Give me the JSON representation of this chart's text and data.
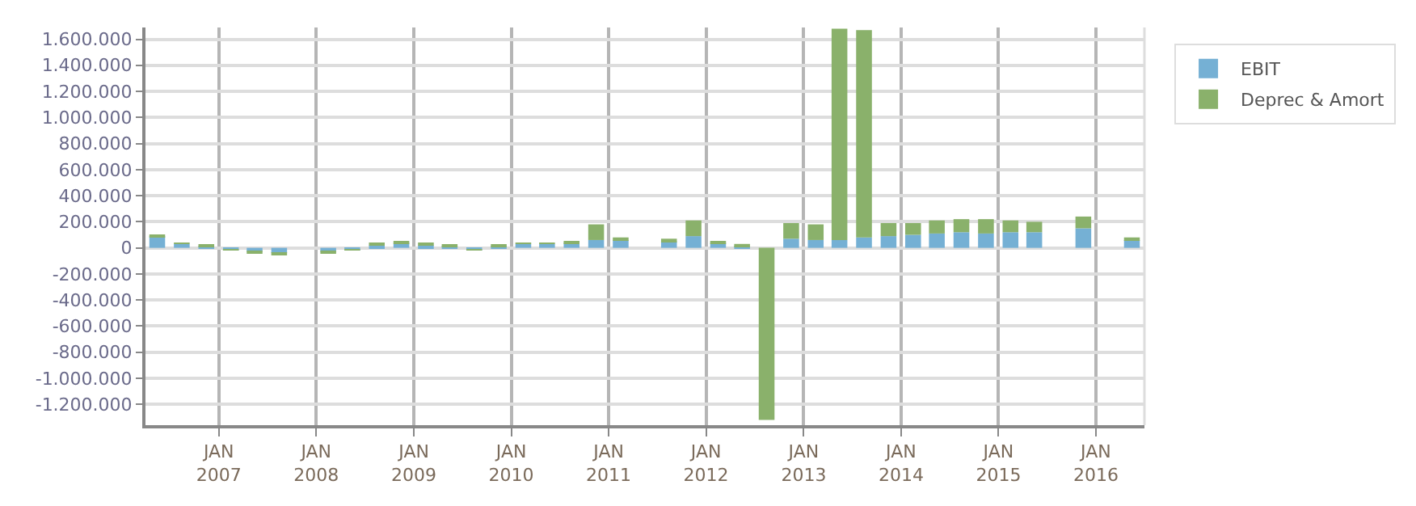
{
  "chart_data": {
    "type": "bar",
    "stacked": true,
    "x": [
      "2006-05-15",
      "2006-08-15",
      "2006-11-15",
      "2007-02-15",
      "2007-05-15",
      "2007-08-15",
      "2007-11-15",
      "2008-02-15",
      "2008-05-15",
      "2008-08-15",
      "2008-11-15",
      "2009-02-15",
      "2009-05-15",
      "2009-08-15",
      "2009-11-15",
      "2010-02-15",
      "2010-05-15",
      "2010-08-15",
      "2010-11-15",
      "2011-02-15",
      "2011-05-15",
      "2011-08-15",
      "2011-11-15",
      "2012-02-15",
      "2012-05-15",
      "2012-08-15",
      "2012-11-15",
      "2013-02-15",
      "2013-05-15",
      "2013-08-15",
      "2013-11-15",
      "2014-02-15",
      "2014-05-15",
      "2014-08-15",
      "2014-11-15",
      "2015-02-15",
      "2015-05-15",
      "2015-08-15",
      "2015-11-15",
      "2016-02-15",
      "2016-05-15"
    ],
    "series": [
      {
        "name": "EBIT",
        "color": "#75b0d4",
        "values": [
          90000,
          30000,
          10000,
          -10000,
          -30000,
          -40000,
          null,
          -30000,
          -10000,
          20000,
          40000,
          20000,
          10000,
          -10000,
          10000,
          30000,
          30000,
          40000,
          60000,
          60000,
          null,
          50000,
          90000,
          40000,
          10000,
          null,
          70000,
          60000,
          60000,
          80000,
          90000,
          100000,
          110000,
          120000,
          110000,
          120000,
          120000,
          null,
          150000,
          null,
          60000
        ]
      },
      {
        "name": "Deprec & Amort",
        "color": "#8ab16b",
        "values": [
          10000,
          10000,
          10000,
          -10000,
          -10000,
          -10000,
          null,
          -10000,
          -10000,
          10000,
          10000,
          10000,
          10000,
          -10000,
          10000,
          10000,
          10000,
          10000,
          120000,
          20000,
          null,
          20000,
          120000,
          10000,
          20000,
          -1320000,
          120000,
          120000,
          1620000,
          1590000,
          100000,
          90000,
          100000,
          100000,
          110000,
          90000,
          80000,
          null,
          90000,
          null,
          20000
        ]
      }
    ],
    "xlim": [
      "2006-04-01",
      "2016-07-01"
    ],
    "xticks": [
      {
        "value": "2007-01-01",
        "label": "JAN\n2007"
      },
      {
        "value": "2008-01-01",
        "label": "JAN\n2008"
      },
      {
        "value": "2009-01-01",
        "label": "JAN\n2009"
      },
      {
        "value": "2010-01-01",
        "label": "JAN\n2010"
      },
      {
        "value": "2011-01-01",
        "label": "JAN\n2011"
      },
      {
        "value": "2012-01-01",
        "label": "JAN\n2012"
      },
      {
        "value": "2013-01-01",
        "label": "JAN\n2013"
      },
      {
        "value": "2014-01-01",
        "label": "JAN\n2014"
      },
      {
        "value": "2015-01-01",
        "label": "JAN\n2015"
      },
      {
        "value": "2016-01-01",
        "label": "JAN\n2016"
      }
    ],
    "ylim": [
      -1360000,
      1690000
    ],
    "yticks": [
      {
        "value": -1200000,
        "label": "-1.200.000"
      },
      {
        "value": -1000000,
        "label": "-1.000.000"
      },
      {
        "value": -800000,
        "label": "-800.000"
      },
      {
        "value": -600000,
        "label": "-600.000"
      },
      {
        "value": -400000,
        "label": "-400.000"
      },
      {
        "value": -200000,
        "label": "-200.000"
      },
      0,
      {
        "value": 200000,
        "label": "200.000"
      },
      {
        "value": 400000,
        "label": "400.000"
      },
      {
        "value": 600000,
        "label": "600.000"
      },
      {
        "value": 800000,
        "label": "800.000"
      },
      {
        "value": 1000000,
        "label": "1.000.000"
      },
      {
        "value": 1200000,
        "label": "1.200.000"
      },
      {
        "value": 1400000,
        "label": "1.400.000"
      },
      {
        "value": 1600000,
        "label": "1.600.000"
      }
    ],
    "grid": true,
    "legend": "top right"
  }
}
